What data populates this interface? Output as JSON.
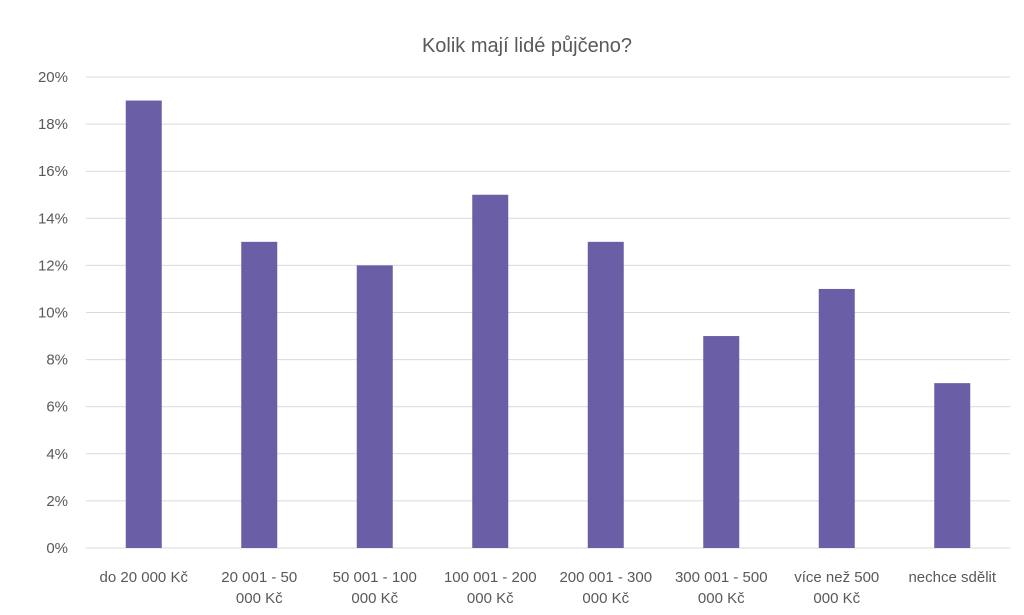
{
  "chart_data": {
    "type": "bar",
    "title": "Kolik mají lidé půjčeno?",
    "xlabel": "",
    "ylabel": "",
    "ylim": [
      0,
      20
    ],
    "yticks": [
      "0%",
      "2%",
      "4%",
      "6%",
      "8%",
      "10%",
      "12%",
      "14%",
      "16%",
      "18%",
      "20%"
    ],
    "categories": [
      "do 20 000 Kč",
      "20 001 - 50 000 Kč",
      "50 001 - 100 000 Kč",
      "100 001 - 200 000 Kč",
      "200 001 - 300 000 Kč",
      "300 001 - 500 000 Kč",
      "více než 500 000 Kč",
      "nechce sdělit"
    ],
    "category_lines": [
      [
        "do 20 000 Kč"
      ],
      [
        "20 001 - 50",
        "000 Kč"
      ],
      [
        "50 001 - 100",
        "000 Kč"
      ],
      [
        "100 001 - 200",
        "000 Kč"
      ],
      [
        "200 001 - 300",
        "000 Kč"
      ],
      [
        "300 001 - 500",
        "000 Kč"
      ],
      [
        "více než 500",
        "000 Kč"
      ],
      [
        "nechce sdělit"
      ]
    ],
    "values": [
      19,
      13,
      12,
      15,
      13,
      9,
      11,
      7
    ],
    "unit": "%",
    "grid": true,
    "legend": "none",
    "bar_color": "#6a5fa6"
  }
}
